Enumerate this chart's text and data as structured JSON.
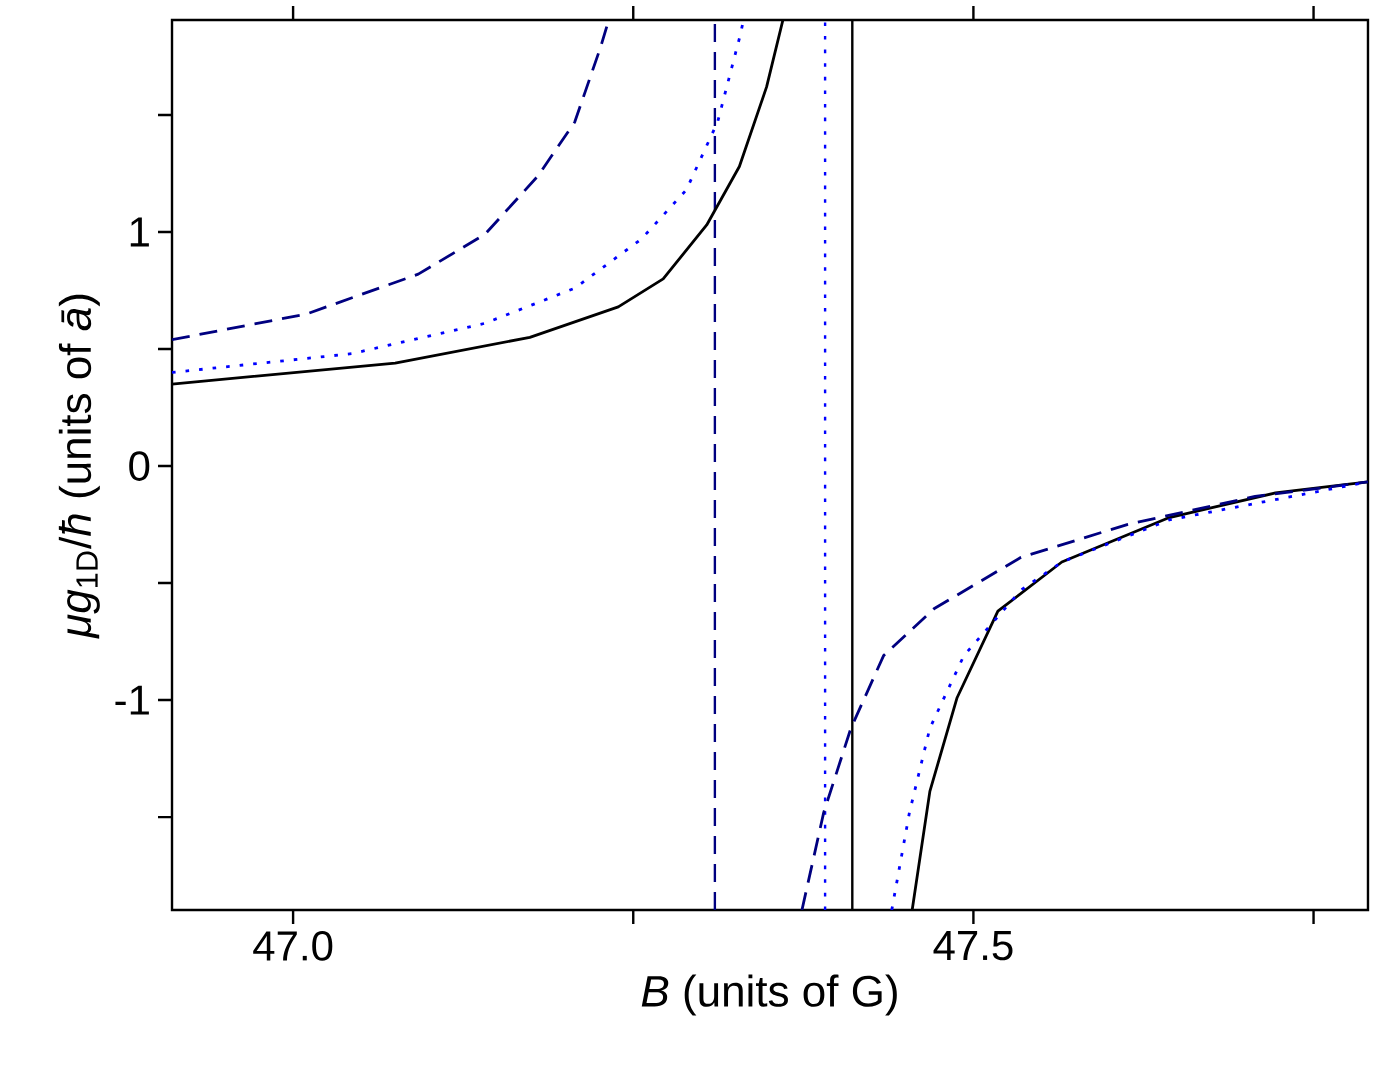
{
  "chart_data": {
    "type": "line",
    "xlabel": "*B* (units of G)",
    "ylabel": "*μg*$_{1D}$/*ħ* (units of *ā*)",
    "xlim": [
      46.911,
      47.79
    ],
    "ylim": [
      -1.897,
      1.906
    ],
    "xticks": [
      {
        "value": 47.0,
        "label": "47.0"
      },
      {
        "value": 47.25,
        "label": null
      },
      {
        "value": 47.5,
        "label": "47.5"
      },
      {
        "value": 47.75,
        "label": null
      }
    ],
    "yticks": [
      {
        "value": -1.5,
        "label": null
      },
      -1,
      {
        "value": -0.5,
        "label": null
      },
      0,
      {
        "value": 0.5,
        "label": null
      },
      1,
      {
        "value": 1.5,
        "label": null
      }
    ],
    "series": [
      {
        "color": "#000000",
        "line_style": "solid",
        "x": [
          46.911,
          47.075,
          47.174,
          47.239,
          47.272,
          47.304,
          47.328,
          47.348,
          47.36,
          47.41,
          47.455,
          47.468,
          47.488,
          47.518,
          47.565,
          47.644,
          47.722,
          47.79
        ],
        "values": [
          0.35,
          0.44,
          0.55,
          0.68,
          0.8,
          1.03,
          1.28,
          1.62,
          1.906,
          null,
          -1.897,
          -1.39,
          -0.99,
          -0.62,
          -0.41,
          -0.22,
          -0.115,
          -0.068
        ]
      },
      {
        "color": "#000080",
        "line_style": "dashed",
        "x": [
          46.911,
          47.01,
          47.092,
          47.141,
          47.18,
          47.207,
          47.226,
          47.232,
          47.3,
          47.374,
          47.39,
          47.41,
          47.434,
          47.471,
          47.535,
          47.613,
          47.707,
          47.79
        ],
        "values": [
          0.54,
          0.65,
          0.82,
          0.99,
          1.24,
          1.47,
          1.79,
          1.906,
          null,
          -1.897,
          -1.48,
          -1.12,
          -0.81,
          -0.61,
          -0.39,
          -0.25,
          -0.13,
          -0.068
        ]
      },
      {
        "color": "#0000ff",
        "line_style": "dotted",
        "x": [
          46.911,
          47.043,
          47.141,
          47.207,
          47.256,
          47.289,
          47.312,
          47.329,
          47.331,
          47.39,
          47.44,
          47.453,
          47.468,
          47.493,
          47.535,
          47.565,
          47.644,
          47.79
        ],
        "values": [
          0.4,
          0.48,
          0.61,
          0.76,
          0.97,
          1.18,
          1.47,
          1.85,
          1.906,
          null,
          -1.897,
          -1.48,
          -1.12,
          -0.81,
          -0.53,
          -0.41,
          -0.23,
          -0.068
        ]
      }
    ],
    "ref_lines": [
      {
        "axis": "x",
        "value": 47.31,
        "color": "#000080",
        "line_style": "dashed"
      },
      {
        "axis": "x",
        "value": 47.391,
        "color": "#0000ff",
        "line_style": "dotted"
      },
      {
        "axis": "x",
        "value": 47.411,
        "color": "#000000",
        "line_style": "solid"
      }
    ]
  }
}
